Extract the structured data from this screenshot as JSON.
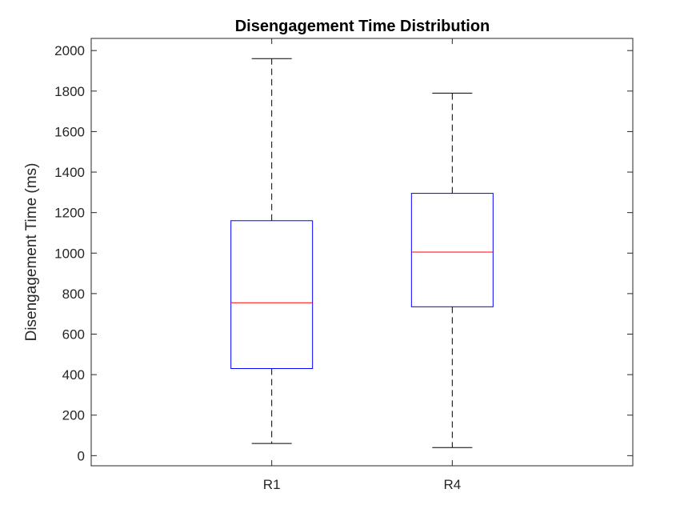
{
  "chart_data": {
    "type": "box",
    "title": "Disengagement Time Distribution",
    "xlabel": "",
    "ylabel": "Disengagement Time (ms)",
    "ylim": [
      -50,
      2060
    ],
    "yticks": [
      0,
      200,
      400,
      600,
      800,
      1000,
      1200,
      1400,
      1600,
      1800,
      2000
    ],
    "categories": [
      "R1",
      "R4"
    ],
    "boxes": [
      {
        "category": "R1",
        "whisker_low": 60,
        "q1": 430,
        "median": 755,
        "q3": 1160,
        "whisker_high": 1960
      },
      {
        "category": "R4",
        "whisker_low": 40,
        "q1": 735,
        "median": 1005,
        "q3": 1295,
        "whisker_high": 1790
      }
    ],
    "grid": false,
    "colors": {
      "box": "#0000ff",
      "median": "#ff0000",
      "whisker": "#000000",
      "axis": "#262626"
    }
  }
}
